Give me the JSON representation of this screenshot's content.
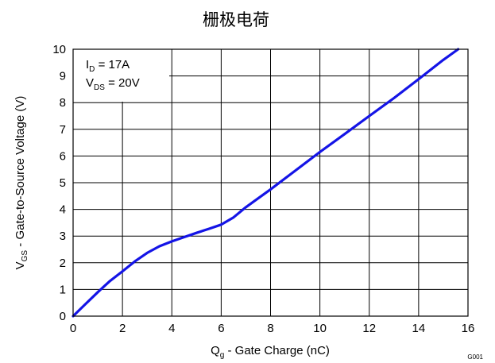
{
  "chart_data": {
    "type": "line",
    "title": "栅极电荷",
    "xlabel": {
      "main": "Q",
      "sub": "g",
      "rest": " - Gate Charge  (nC)"
    },
    "ylabel": {
      "main": "V",
      "sub": "GS",
      "rest": " - Gate-to-Source Voltage (V)"
    },
    "xlim": [
      0,
      16
    ],
    "ylim": [
      0,
      10
    ],
    "xticks": [
      0,
      2,
      4,
      6,
      8,
      10,
      12,
      14,
      16
    ],
    "yticks": [
      0,
      1,
      2,
      3,
      4,
      5,
      6,
      7,
      8,
      9,
      10
    ],
    "grid": true,
    "series": [
      {
        "color": "#1414e6",
        "x": [
          0,
          0.5,
          1.0,
          1.5,
          2.0,
          2.5,
          3.0,
          3.5,
          4.0,
          4.5,
          5.0,
          5.5,
          6.0,
          6.5,
          7.0,
          8.0,
          9.0,
          10.0,
          11.0,
          12.0,
          13.0,
          14.0,
          15.0,
          15.6
        ],
        "y": [
          0,
          0.45,
          0.9,
          1.32,
          1.68,
          2.05,
          2.37,
          2.62,
          2.8,
          2.96,
          3.12,
          3.27,
          3.43,
          3.7,
          4.08,
          4.75,
          5.45,
          6.15,
          6.82,
          7.5,
          8.17,
          8.88,
          9.6,
          10.0
        ]
      }
    ],
    "annotations": [
      {
        "main": "I",
        "sub": "D",
        "rest": " = 17A"
      },
      {
        "main": "V",
        "sub": "DS",
        "rest": " = 20V"
      }
    ],
    "figure_code": "G001"
  }
}
